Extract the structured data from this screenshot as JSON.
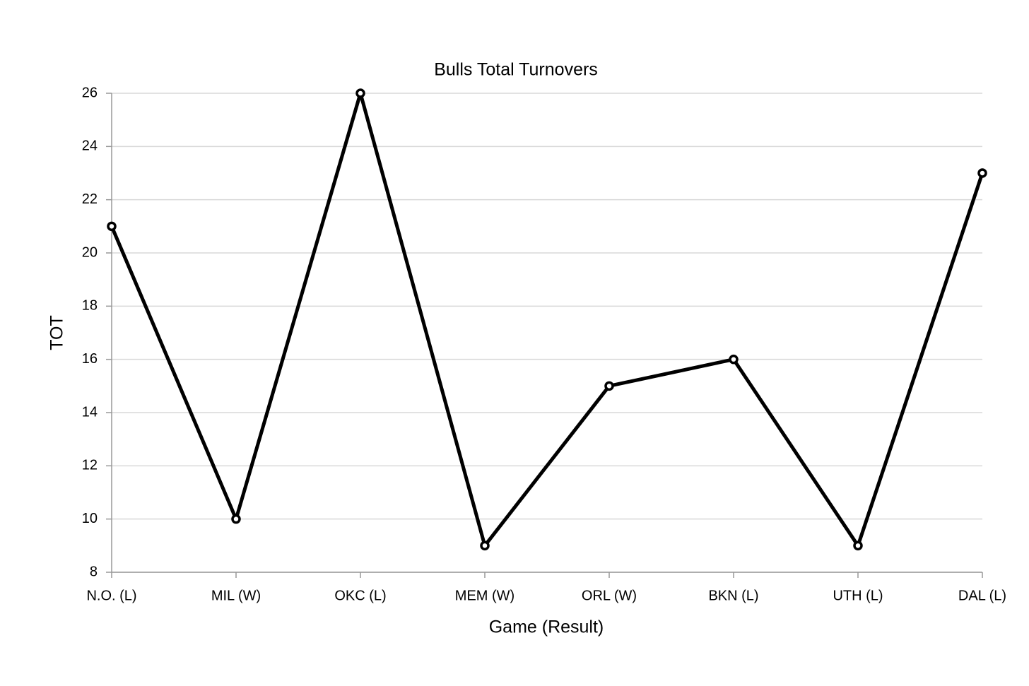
{
  "chart_data": {
    "type": "line",
    "title": "Bulls Total Turnovers",
    "x_label": "Game (Result)",
    "y_label": "TOT",
    "categories": [
      "N.O. (L)",
      "MIL (W)",
      "OKC (L)",
      "MEM (W)",
      "ORL (W)",
      "BKN (L)",
      "UTH (L)",
      "DAL (L)"
    ],
    "values": [
      21,
      10,
      26,
      9,
      15,
      16,
      9,
      23
    ],
    "color": "#000000",
    "ylim": [
      8,
      26
    ],
    "yticks": [
      8,
      10,
      12,
      14,
      16,
      18,
      20,
      22,
      24,
      26
    ],
    "grid": true
  }
}
